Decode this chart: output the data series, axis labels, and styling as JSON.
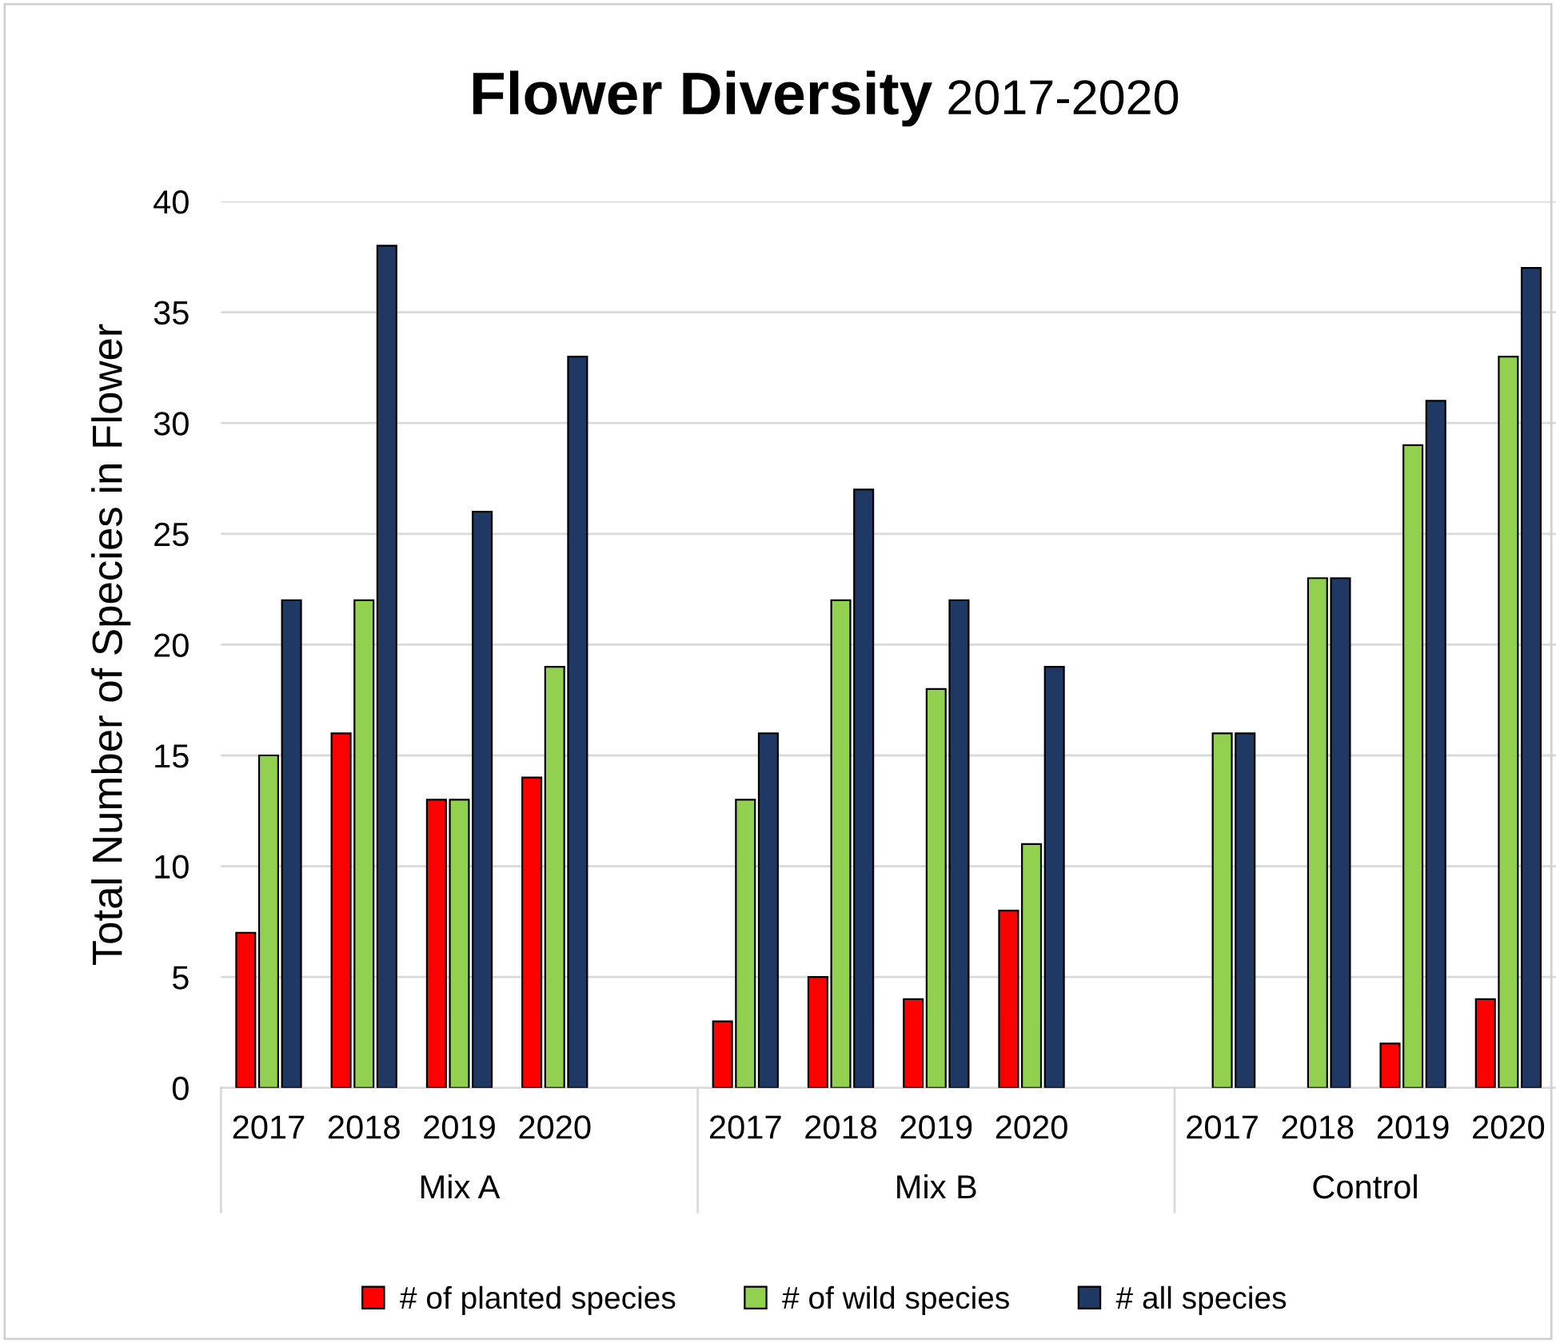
{
  "chart_data": {
    "type": "bar",
    "title": "Flower Diversity",
    "subtitle": "2017-2020",
    "ylabel": "Total Number of Species in Flower",
    "categories": [
      "2017",
      "2018",
      "2019",
      "2020",
      null,
      "2017",
      "2018",
      "2019",
      "2020",
      null,
      "2017",
      "2018",
      "2019",
      "2020"
    ],
    "annotations": [
      "Mix A",
      "Mix B",
      "Control"
    ],
    "series": [
      {
        "name": "# of planted species",
        "color": "#ff0000",
        "values": [
          7,
          16,
          13,
          14,
          null,
          3,
          5,
          4,
          8,
          null,
          null,
          null,
          2,
          4
        ]
      },
      {
        "name": "# of wild species",
        "color": "#92d050",
        "values": [
          15,
          22,
          13,
          19,
          null,
          13,
          22,
          18,
          11,
          null,
          16,
          23,
          29,
          33
        ]
      },
      {
        "name": "# all species",
        "color": "#203864",
        "values": [
          22,
          38,
          26,
          33,
          null,
          16,
          27,
          22,
          19,
          null,
          16,
          23,
          31,
          37
        ]
      }
    ],
    "ylim": [
      0,
      40
    ],
    "yticks": [
      0,
      5,
      10,
      15,
      20,
      25,
      30,
      35,
      40
    ],
    "grid": "y",
    "legend": "bottom"
  }
}
